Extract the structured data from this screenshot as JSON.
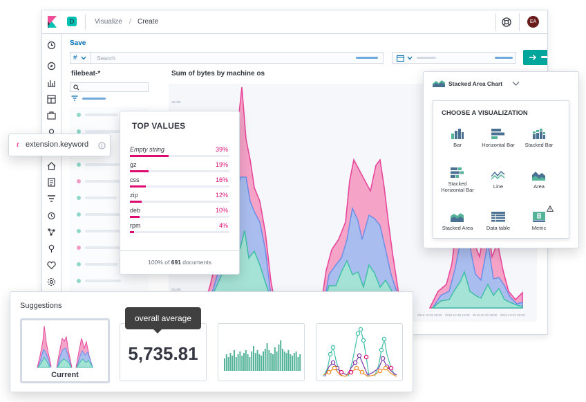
{
  "header": {
    "space_badge": "D",
    "breadcrumbs": [
      "Visualize",
      "Create"
    ],
    "breadcrumb_sep": "/",
    "user_initials": "EA"
  },
  "toolbar": {
    "save_label": "Save",
    "query_type": "#",
    "search_placeholder": "Search"
  },
  "sidebar": {
    "index_pattern": "filebeat-*"
  },
  "chart": {
    "title": "Sum of bytes by machine os",
    "y_ticks": [
      "10,000",
      "15,000"
    ],
    "x_ticks": [
      "2018-10-30 06:00",
      "2018-10-30 12:00",
      "2018-10-30 18:00",
      "2018-10-31 00:00",
      "2018-10-31 06:00"
    ]
  },
  "field_tooltip": {
    "type_glyph": "t",
    "field_name": "extension.keyword",
    "info_icon": "info-icon"
  },
  "top_values": {
    "title": "TOP VALUES",
    "rows": [
      {
        "label": "Empty string",
        "pct": "39%",
        "fraction": 0.39
      },
      {
        "label": "gz",
        "pct": "19%",
        "fraction": 0.19
      },
      {
        "label": "css",
        "pct": "16%",
        "fraction": 0.16
      },
      {
        "label": "zip",
        "pct": "12%",
        "fraction": 0.12
      },
      {
        "label": "deb",
        "pct": "10%",
        "fraction": 0.1
      },
      {
        "label": "rpm",
        "pct": "4%",
        "fraction": 0.04
      }
    ],
    "footer_pct": "100%",
    "footer_of": "of",
    "footer_count": "691",
    "footer_docs": "documents"
  },
  "chart_switcher": {
    "current": "Stacked Area Chart",
    "heading": "CHOOSE A VISUALIZATION",
    "items": [
      "Bar",
      "Horizontal Bar",
      "Stacked Bar",
      "Stacked Horizontal Bar",
      "Line",
      "Area",
      "Stacked Area",
      "Data table",
      "Metric"
    ]
  },
  "suggestions": {
    "title": "Suggestions",
    "current_label": "Current",
    "metric_value": "5,735.81",
    "tooltip": "overall average"
  },
  "colors": {
    "pink": "#e7479b",
    "blue": "#6b8ee8",
    "teal": "#3fbfa6",
    "accent": "#00a69b",
    "link": "#006bb4",
    "magenta": "#dd0a73"
  }
}
